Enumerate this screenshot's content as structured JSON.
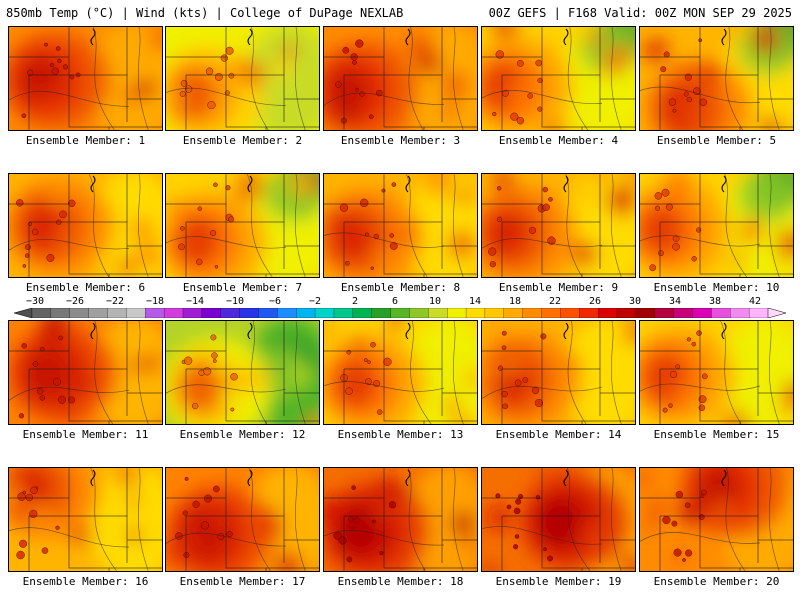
{
  "header": {
    "left": "850mb Temp (°C) | Wind (kts) | College of DuPage NEXLAB",
    "right": "00Z GEFS | F168 Valid: 00Z MON SEP 29 2025"
  },
  "panels": [
    {
      "label": "Ensemble Member: 1",
      "dominant": "red-orange",
      "warmest_region": "west"
    },
    {
      "label": "Ensemble Member: 2",
      "dominant": "yellow",
      "warmest_region": "west"
    },
    {
      "label": "Ensemble Member: 3",
      "dominant": "red-orange",
      "warmest_region": "west"
    },
    {
      "label": "Ensemble Member: 4",
      "dominant": "orange-yellow",
      "warmest_region": "west",
      "coolest_region": "northeast"
    },
    {
      "label": "Ensemble Member: 5",
      "dominant": "orange",
      "warmest_region": "southwest",
      "coolest_region": "northeast"
    },
    {
      "label": "Ensemble Member: 6",
      "dominant": "orange",
      "warmest_region": "west"
    },
    {
      "label": "Ensemble Member: 7",
      "dominant": "orange-yellow",
      "warmest_region": "west",
      "coolest_region": "northeast"
    },
    {
      "label": "Ensemble Member: 8",
      "dominant": "orange",
      "warmest_region": "west"
    },
    {
      "label": "Ensemble Member: 9",
      "dominant": "orange",
      "warmest_region": "west"
    },
    {
      "label": "Ensemble Member: 10",
      "dominant": "orange-yellow",
      "warmest_region": "west",
      "coolest_region": "northeast"
    },
    {
      "label": "Ensemble Member: 11",
      "dominant": "orange-red",
      "warmest_region": "west"
    },
    {
      "label": "Ensemble Member: 12",
      "dominant": "yellow-green",
      "warmest_region": "west",
      "coolest_region": "east-central"
    },
    {
      "label": "Ensemble Member: 13",
      "dominant": "orange-yellow",
      "warmest_region": "west"
    },
    {
      "label": "Ensemble Member: 14",
      "dominant": "orange",
      "warmest_region": "west"
    },
    {
      "label": "Ensemble Member: 15",
      "dominant": "orange-yellow",
      "warmest_region": "west"
    },
    {
      "label": "Ensemble Member: 16",
      "dominant": "orange",
      "warmest_region": "northwest"
    },
    {
      "label": "Ensemble Member: 17",
      "dominant": "orange-red",
      "warmest_region": "west"
    },
    {
      "label": "Ensemble Member: 18",
      "dominant": "red",
      "warmest_region": "west"
    },
    {
      "label": "Ensemble Member: 19",
      "dominant": "red",
      "warmest_region": "center"
    },
    {
      "label": "Ensemble Member: 20",
      "dominant": "red-orange",
      "warmest_region": "north"
    }
  ],
  "colorbar": {
    "units": "°C",
    "labels": [
      "−30",
      "−26",
      "−22",
      "−18",
      "−14",
      "−10",
      "−6",
      "−2",
      "2",
      "6",
      "10",
      "14",
      "18",
      "22",
      "26",
      "30",
      "34",
      "38",
      "42"
    ],
    "colors": [
      "#646464",
      "#787878",
      "#8c8c8c",
      "#a0a0a0",
      "#b4b4b4",
      "#c8c8c8",
      "#b45ae6",
      "#d23cdc",
      "#a01ed2",
      "#7a00d2",
      "#5028dc",
      "#2832e6",
      "#1e5af0",
      "#1e8cff",
      "#00b4f0",
      "#00d2c8",
      "#00c88c",
      "#00b450",
      "#28a028",
      "#5ab428",
      "#8cc828",
      "#c8dc28",
      "#f0f000",
      "#ffdc00",
      "#ffc800",
      "#ffaa00",
      "#ff8c00",
      "#ff6e00",
      "#ff5000",
      "#f02800",
      "#dc0000",
      "#be0000",
      "#a00000",
      "#b4003c",
      "#c8007a",
      "#dc00b4",
      "#e650dc",
      "#f08cf0",
      "#ffb4ff"
    ]
  }
}
